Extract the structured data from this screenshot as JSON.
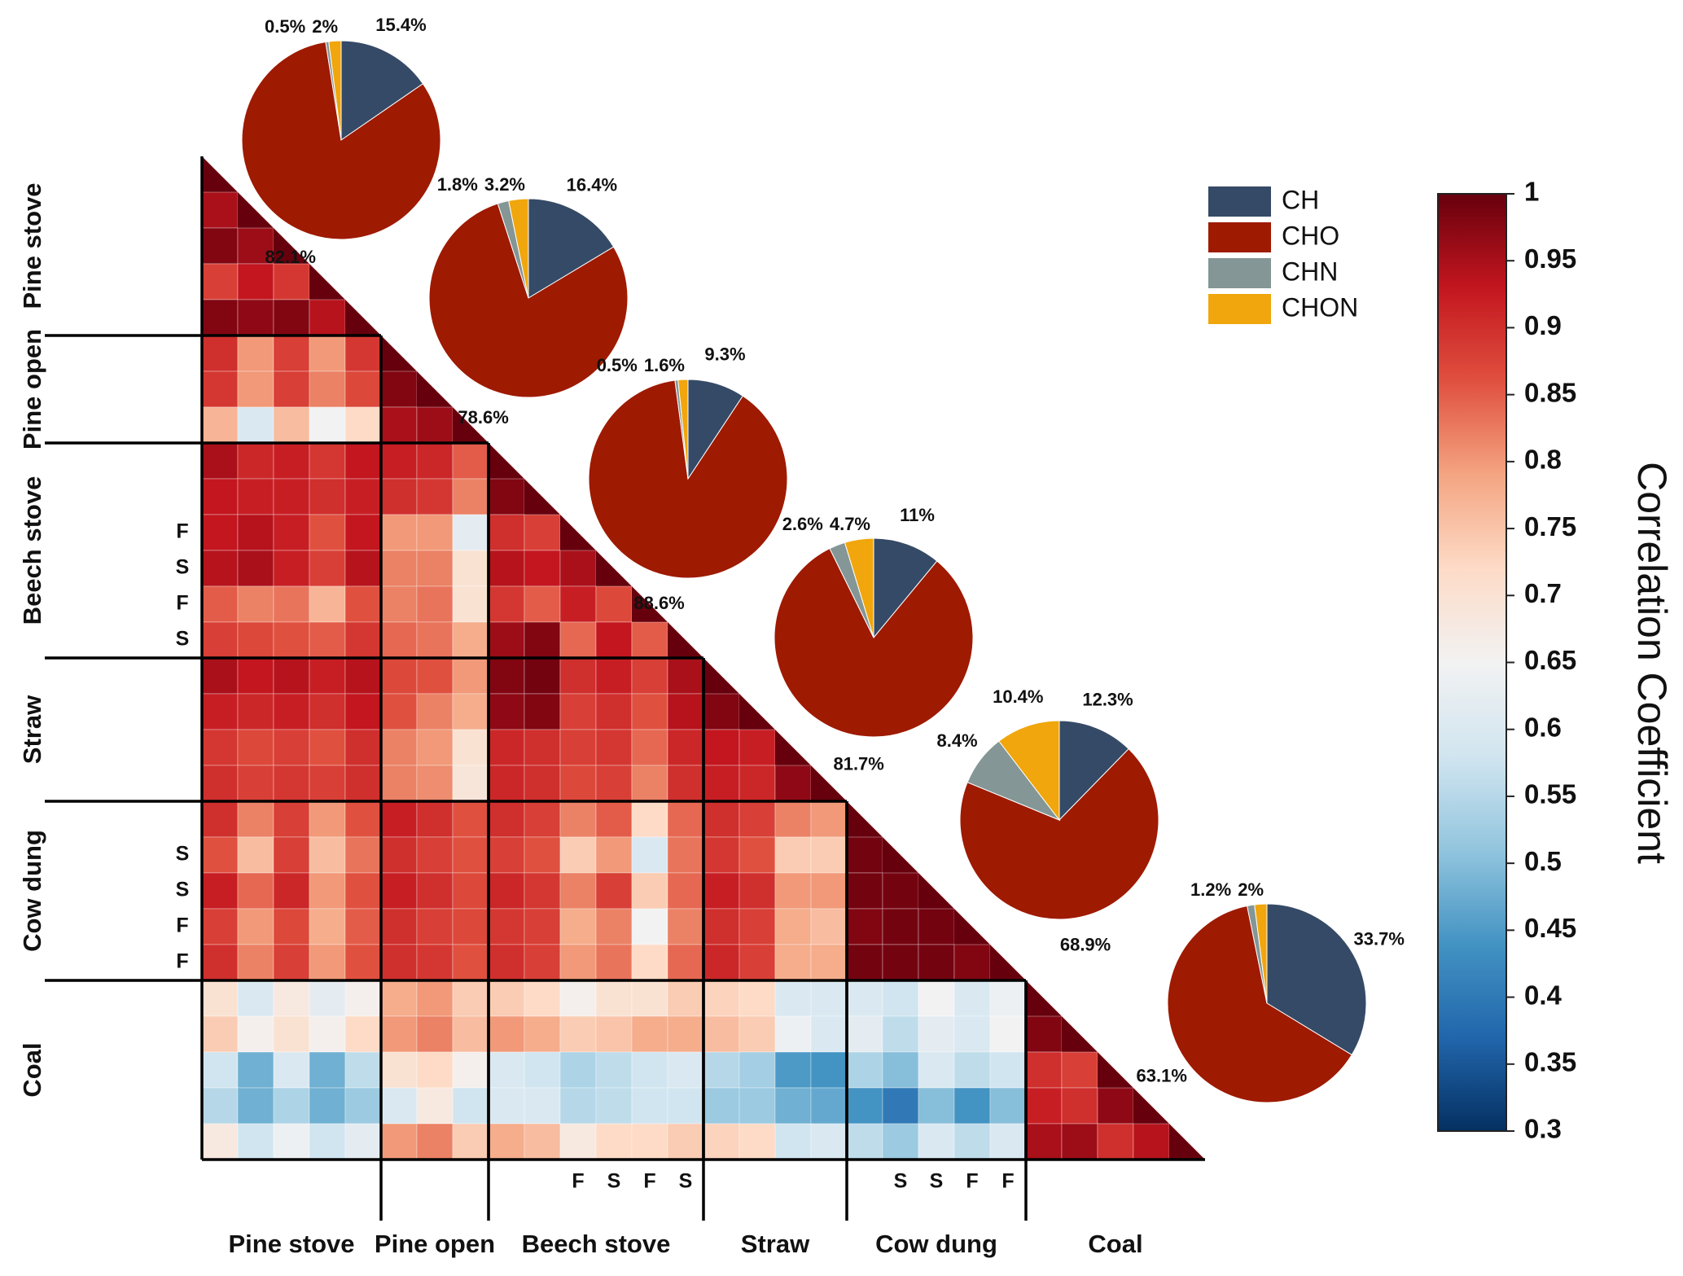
{
  "chart_data": [
    {
      "type": "heatmap",
      "groups": [
        {
          "name": "Pine stove",
          "count": 5
        },
        {
          "name": "Pine open",
          "count": 3
        },
        {
          "name": "Beech stove",
          "count": 6
        },
        {
          "name": "Straw",
          "count": 4
        },
        {
          "name": "Cow dung",
          "count": 5
        },
        {
          "name": "Coal",
          "count": 5
        }
      ],
      "sample_labels": {
        "indices": [
          10,
          11,
          12,
          13,
          19,
          20,
          21,
          22
        ],
        "labels": [
          "F",
          "S",
          "F",
          "S",
          "S",
          "S",
          "F",
          "F"
        ]
      },
      "matrix": [
        [
          1
        ],
        [
          0.95,
          1
        ],
        [
          0.98,
          0.96,
          1
        ],
        [
          0.88,
          0.93,
          0.89,
          1
        ],
        [
          0.98,
          0.97,
          0.98,
          0.94,
          1
        ],
        [
          0.9,
          0.8,
          0.88,
          0.8,
          0.89,
          1
        ],
        [
          0.89,
          0.8,
          0.88,
          0.82,
          0.87,
          0.98,
          1
        ],
        [
          0.77,
          0.6,
          0.76,
          0.65,
          0.72,
          0.95,
          0.96,
          1
        ],
        [
          0.95,
          0.91,
          0.92,
          0.89,
          0.93,
          0.92,
          0.91,
          0.85,
          1
        ],
        [
          0.93,
          0.92,
          0.92,
          0.9,
          0.92,
          0.9,
          0.89,
          0.82,
          0.98,
          1
        ],
        [
          0.93,
          0.94,
          0.92,
          0.86,
          0.93,
          0.8,
          0.8,
          0.62,
          0.9,
          0.88,
          1
        ],
        [
          0.94,
          0.95,
          0.92,
          0.88,
          0.94,
          0.82,
          0.82,
          0.7,
          0.94,
          0.93,
          0.95,
          1
        ],
        [
          0.85,
          0.82,
          0.83,
          0.77,
          0.86,
          0.82,
          0.83,
          0.7,
          0.89,
          0.85,
          0.92,
          0.87,
          1
        ],
        [
          0.88,
          0.87,
          0.86,
          0.85,
          0.89,
          0.84,
          0.83,
          0.78,
          0.96,
          0.98,
          0.84,
          0.93,
          0.85,
          1
        ],
        [
          0.95,
          0.93,
          0.94,
          0.92,
          0.94,
          0.87,
          0.86,
          0.8,
          0.98,
          0.99,
          0.9,
          0.92,
          0.88,
          0.95,
          1
        ],
        [
          0.92,
          0.91,
          0.92,
          0.9,
          0.93,
          0.86,
          0.82,
          0.78,
          0.97,
          0.98,
          0.88,
          0.9,
          0.86,
          0.94,
          0.98,
          1
        ],
        [
          0.89,
          0.87,
          0.88,
          0.86,
          0.9,
          0.82,
          0.8,
          0.7,
          0.91,
          0.9,
          0.88,
          0.89,
          0.84,
          0.91,
          0.93,
          0.92,
          1
        ],
        [
          0.9,
          0.88,
          0.89,
          0.88,
          0.9,
          0.82,
          0.81,
          0.69,
          0.91,
          0.9,
          0.87,
          0.88,
          0.82,
          0.9,
          0.92,
          0.91,
          0.97,
          1
        ],
        [
          0.9,
          0.82,
          0.88,
          0.8,
          0.86,
          0.92,
          0.9,
          0.86,
          0.9,
          0.88,
          0.82,
          0.85,
          0.72,
          0.84,
          0.9,
          0.88,
          0.82,
          0.8,
          1
        ],
        [
          0.86,
          0.76,
          0.88,
          0.76,
          0.83,
          0.9,
          0.88,
          0.86,
          0.88,
          0.86,
          0.74,
          0.8,
          0.6,
          0.83,
          0.89,
          0.86,
          0.74,
          0.74,
          0.99,
          1
        ],
        [
          0.92,
          0.84,
          0.91,
          0.8,
          0.86,
          0.92,
          0.9,
          0.87,
          0.91,
          0.89,
          0.82,
          0.88,
          0.74,
          0.84,
          0.92,
          0.9,
          0.8,
          0.8,
          0.99,
          0.99,
          1
        ],
        [
          0.88,
          0.8,
          0.87,
          0.78,
          0.85,
          0.9,
          0.88,
          0.87,
          0.89,
          0.88,
          0.78,
          0.82,
          0.65,
          0.82,
          0.9,
          0.88,
          0.78,
          0.76,
          0.98,
          0.99,
          0.99,
          1
        ],
        [
          0.9,
          0.82,
          0.88,
          0.8,
          0.86,
          0.9,
          0.89,
          0.86,
          0.9,
          0.88,
          0.8,
          0.83,
          0.72,
          0.84,
          0.91,
          0.88,
          0.78,
          0.78,
          0.99,
          0.99,
          0.99,
          0.98,
          1
        ],
        [
          0.7,
          0.6,
          0.68,
          0.62,
          0.66,
          0.78,
          0.8,
          0.74,
          0.74,
          0.72,
          0.66,
          0.7,
          0.7,
          0.74,
          0.73,
          0.72,
          0.6,
          0.6,
          0.6,
          0.58,
          0.65,
          0.6,
          0.64,
          1
        ],
        [
          0.74,
          0.66,
          0.7,
          0.66,
          0.72,
          0.8,
          0.82,
          0.76,
          0.8,
          0.78,
          0.74,
          0.75,
          0.78,
          0.78,
          0.76,
          0.74,
          0.64,
          0.6,
          0.62,
          0.56,
          0.62,
          0.6,
          0.65,
          0.98,
          1
        ],
        [
          0.58,
          0.48,
          0.6,
          0.48,
          0.56,
          0.7,
          0.72,
          0.66,
          0.6,
          0.58,
          0.54,
          0.56,
          0.58,
          0.6,
          0.55,
          0.53,
          0.45,
          0.44,
          0.54,
          0.5,
          0.6,
          0.56,
          0.58,
          0.9,
          0.88,
          1
        ],
        [
          0.55,
          0.48,
          0.54,
          0.48,
          0.52,
          0.6,
          0.68,
          0.58,
          0.6,
          0.6,
          0.55,
          0.56,
          0.58,
          0.58,
          0.52,
          0.52,
          0.48,
          0.47,
          0.44,
          0.4,
          0.5,
          0.44,
          0.5,
          0.92,
          0.9,
          0.97,
          1
        ],
        [
          0.68,
          0.58,
          0.64,
          0.58,
          0.62,
          0.8,
          0.82,
          0.74,
          0.78,
          0.76,
          0.68,
          0.72,
          0.72,
          0.74,
          0.73,
          0.72,
          0.58,
          0.6,
          0.56,
          0.52,
          0.6,
          0.56,
          0.6,
          0.95,
          0.96,
          0.9,
          0.94,
          1
        ]
      ],
      "zlim": [
        0.3,
        1
      ],
      "zticks": [
        1,
        0.95,
        0.9,
        0.85,
        0.8,
        0.75,
        0.7,
        0.65,
        0.6,
        0.55,
        0.5,
        0.45,
        0.4,
        0.35,
        0.3
      ],
      "colorscale": [
        "#053061",
        "#2166ac",
        "#4393c3",
        "#92c5de",
        "#d1e5f0",
        "#f2f2f2",
        "#fddbc7",
        "#f4a582",
        "#e0503f",
        "#c3161f",
        "#67000d"
      ],
      "colorbar_label": "Correlation Coefficient"
    },
    {
      "type": "pie",
      "labels": [
        "CH",
        "CHO",
        "CHN",
        "CHON"
      ],
      "colors": [
        "#354a66",
        "#9e1a00",
        "#849696",
        "#f0a60c"
      ],
      "pies": [
        {
          "values": [
            15.4,
            82.1,
            0.5,
            2
          ],
          "value_labels": [
            "15.4%",
            "82.1%",
            "0.5%",
            "2%"
          ]
        },
        {
          "values": [
            16.4,
            78.6,
            1.8,
            3.2
          ],
          "value_labels": [
            "16.4%",
            "78.6%",
            "1.8%",
            "3.2%"
          ]
        },
        {
          "values": [
            9.3,
            88.6,
            0.5,
            1.6
          ],
          "value_labels": [
            "9.3%",
            "88.6%",
            "0.5%",
            "1.6%"
          ]
        },
        {
          "values": [
            11,
            81.7,
            2.6,
            4.7
          ],
          "value_labels": [
            "11%",
            "81.7%",
            "2.6%",
            "4.7%"
          ]
        },
        {
          "values": [
            12.3,
            68.9,
            8.4,
            10.4
          ],
          "value_labels": [
            "12.3%",
            "68.9%",
            "8.4%",
            "10.4%"
          ]
        },
        {
          "values": [
            33.7,
            63.1,
            1.2,
            2
          ],
          "value_labels": [
            "33.7%",
            "63.1%",
            "1.2%",
            "2%"
          ]
        }
      ]
    }
  ]
}
